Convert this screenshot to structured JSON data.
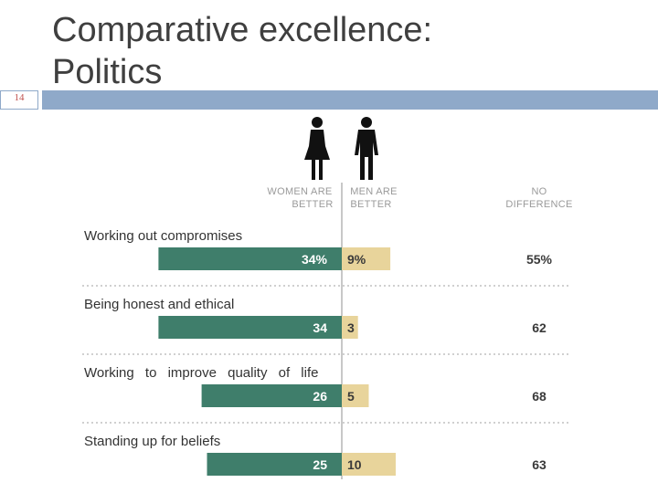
{
  "slide": {
    "number": "14",
    "title_line1": "Comparative excellence:",
    "title_line2": "Politics"
  },
  "colors": {
    "women": "#3f7e6b",
    "men": "#e8d49b",
    "women_text": "#ffffff",
    "men_text": "#3a3a3a",
    "accent_bar": "#8fa9c9"
  },
  "chart_data": {
    "type": "bar",
    "orientation": "horizontal-diverging",
    "headers": {
      "women": [
        "WOMEN ARE",
        "BETTER"
      ],
      "men": [
        "MEN ARE",
        "BETTER"
      ],
      "none": [
        "NO",
        "DIFFERENCE"
      ]
    },
    "categories": [
      "Working out compromises",
      "Being honest and ethical",
      "Working to improve quality of life",
      "Standing up for beliefs"
    ],
    "series": [
      {
        "name": "Women are better",
        "values": [
          34,
          34,
          26,
          25
        ],
        "labels": [
          "34%",
          "34",
          "26",
          "25"
        ]
      },
      {
        "name": "Men are better",
        "values": [
          9,
          3,
          5,
          10
        ],
        "labels": [
          "9%",
          "3",
          "5",
          "10"
        ]
      },
      {
        "name": "No difference",
        "values": [
          55,
          62,
          68,
          63
        ],
        "labels": [
          "55%",
          "62",
          "68",
          "63"
        ]
      }
    ]
  }
}
